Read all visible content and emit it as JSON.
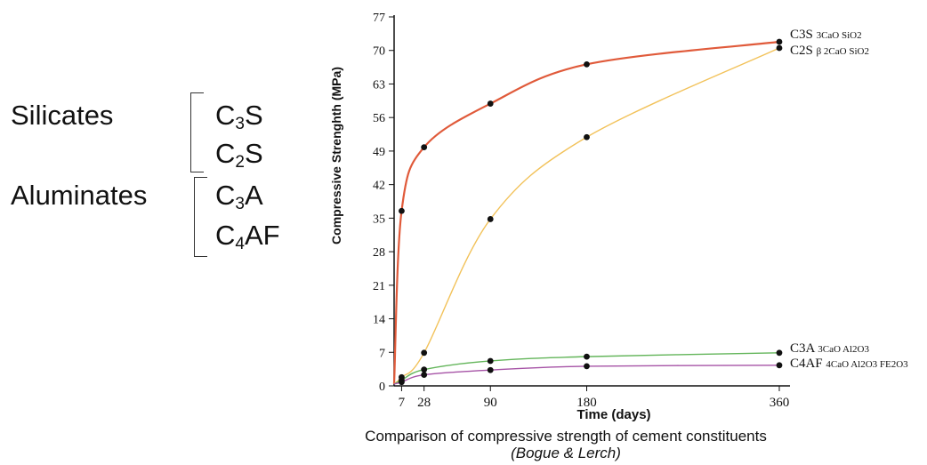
{
  "groups": [
    {
      "label": "Silicates",
      "components": [
        {
          "base": "C",
          "sub": "3",
          "rest": "S"
        },
        {
          "base": "C",
          "sub": "2",
          "rest": "S"
        }
      ]
    },
    {
      "label": "Aluminates",
      "components": [
        {
          "base": "C",
          "sub": "3",
          "rest": "A"
        },
        {
          "base": "C",
          "sub": "4",
          "rest": "AF"
        }
      ]
    }
  ],
  "caption": {
    "title": "Comparison of compressive strength of cement constituents",
    "credit": "(Bogue & Lerch)"
  },
  "chart_data": {
    "type": "line",
    "xlabel": "Time (days)",
    "ylabel": "Compressive Strenghth (MPa)",
    "xlim": [
      0,
      370
    ],
    "ylim": [
      0,
      77
    ],
    "x_ticks": [
      7,
      28,
      90,
      180,
      360
    ],
    "y_ticks": [
      0,
      7,
      14,
      21,
      28,
      35,
      42,
      49,
      56,
      63,
      70,
      77
    ],
    "grid": false,
    "series": [
      {
        "name": "C3S",
        "formula": "3CaO SiO2",
        "color": "#e05a3a",
        "x": [
          7,
          28,
          90,
          180,
          360
        ],
        "y": [
          36.5,
          49.8,
          58.9,
          67.1,
          71.8
        ]
      },
      {
        "name": "C2S",
        "formula": "β 2CaO SiO2",
        "color": "#f2c25a",
        "x": [
          7,
          28,
          90,
          180,
          360
        ],
        "y": [
          1.8,
          6.9,
          34.8,
          51.9,
          70.5
        ]
      },
      {
        "name": "C3A",
        "formula": "3CaO Al2O3",
        "color": "#63b55a",
        "x": [
          7,
          28,
          90,
          180,
          360
        ],
        "y": [
          1.2,
          3.4,
          5.2,
          6.1,
          6.9
        ]
      },
      {
        "name": "C4AF",
        "formula": "4CaO Al2O3 FE2O3",
        "color": "#a653a6",
        "x": [
          7,
          28,
          90,
          180,
          360
        ],
        "y": [
          0.8,
          2.3,
          3.3,
          4.1,
          4.3
        ]
      }
    ]
  }
}
